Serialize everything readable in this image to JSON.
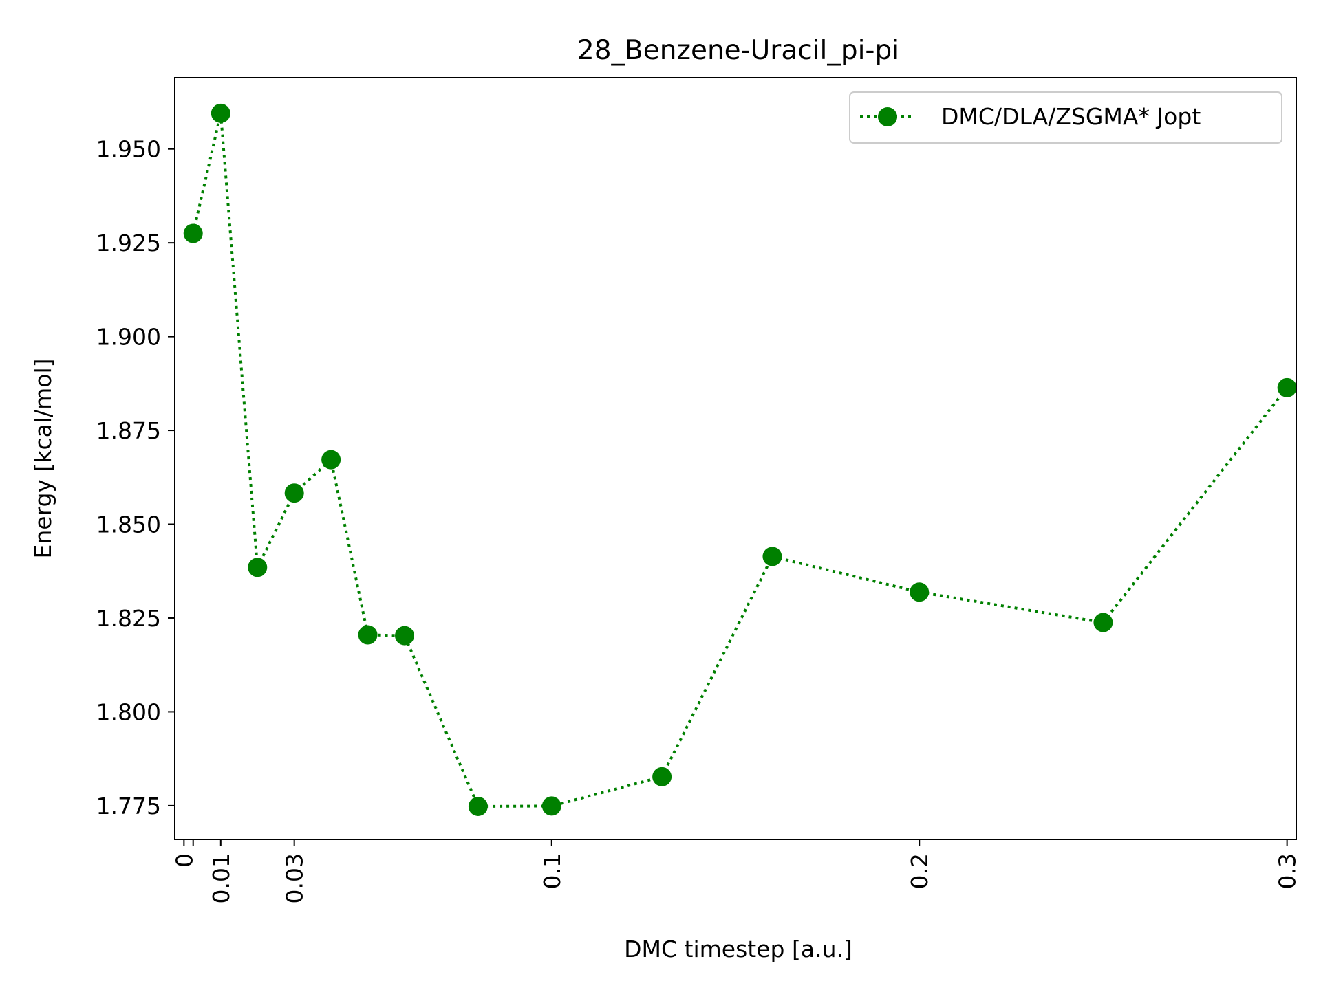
{
  "chart_data": {
    "type": "line",
    "title": "28_Benzene-Uracil_pi-pi",
    "xlabel": "DMC timestep [a.u.]",
    "ylabel": "Energy [kcal/mol]",
    "xlim": [
      -0.0025,
      0.3025
    ],
    "ylim": [
      1.766,
      1.969
    ],
    "x_ticks": [
      0,
      0.01,
      0.03,
      0.1,
      0.2,
      0.3
    ],
    "x_tick_labels": [
      "0",
      "0.01",
      "0.03",
      "0.1",
      "0.2",
      "0.3"
    ],
    "extra_x_ticks": [
      0.0025
    ],
    "y_ticks": [
      1.775,
      1.8,
      1.825,
      1.85,
      1.875,
      1.9,
      1.925,
      1.95
    ],
    "y_tick_labels": [
      "1.775",
      "1.800",
      "1.825",
      "1.850",
      "1.875",
      "1.900",
      "1.925",
      "1.950"
    ],
    "grid": false,
    "legend_position": "top-right",
    "series": [
      {
        "name": "DMC/DLA/ZSGMA* Jopt",
        "color": "#008000",
        "line_style": "dotted",
        "marker": "circle",
        "x": [
          0.0025,
          0.01,
          0.02,
          0.03,
          0.04,
          0.05,
          0.06,
          0.08,
          0.1,
          0.13,
          0.16,
          0.2,
          0.25,
          0.3
        ],
        "y": [
          1.9275,
          1.9595,
          1.8385,
          1.8583,
          1.8672,
          1.8205,
          1.8203,
          1.7748,
          1.7749,
          1.7827,
          1.8414,
          1.8319,
          1.8238,
          1.8864
        ]
      }
    ]
  }
}
